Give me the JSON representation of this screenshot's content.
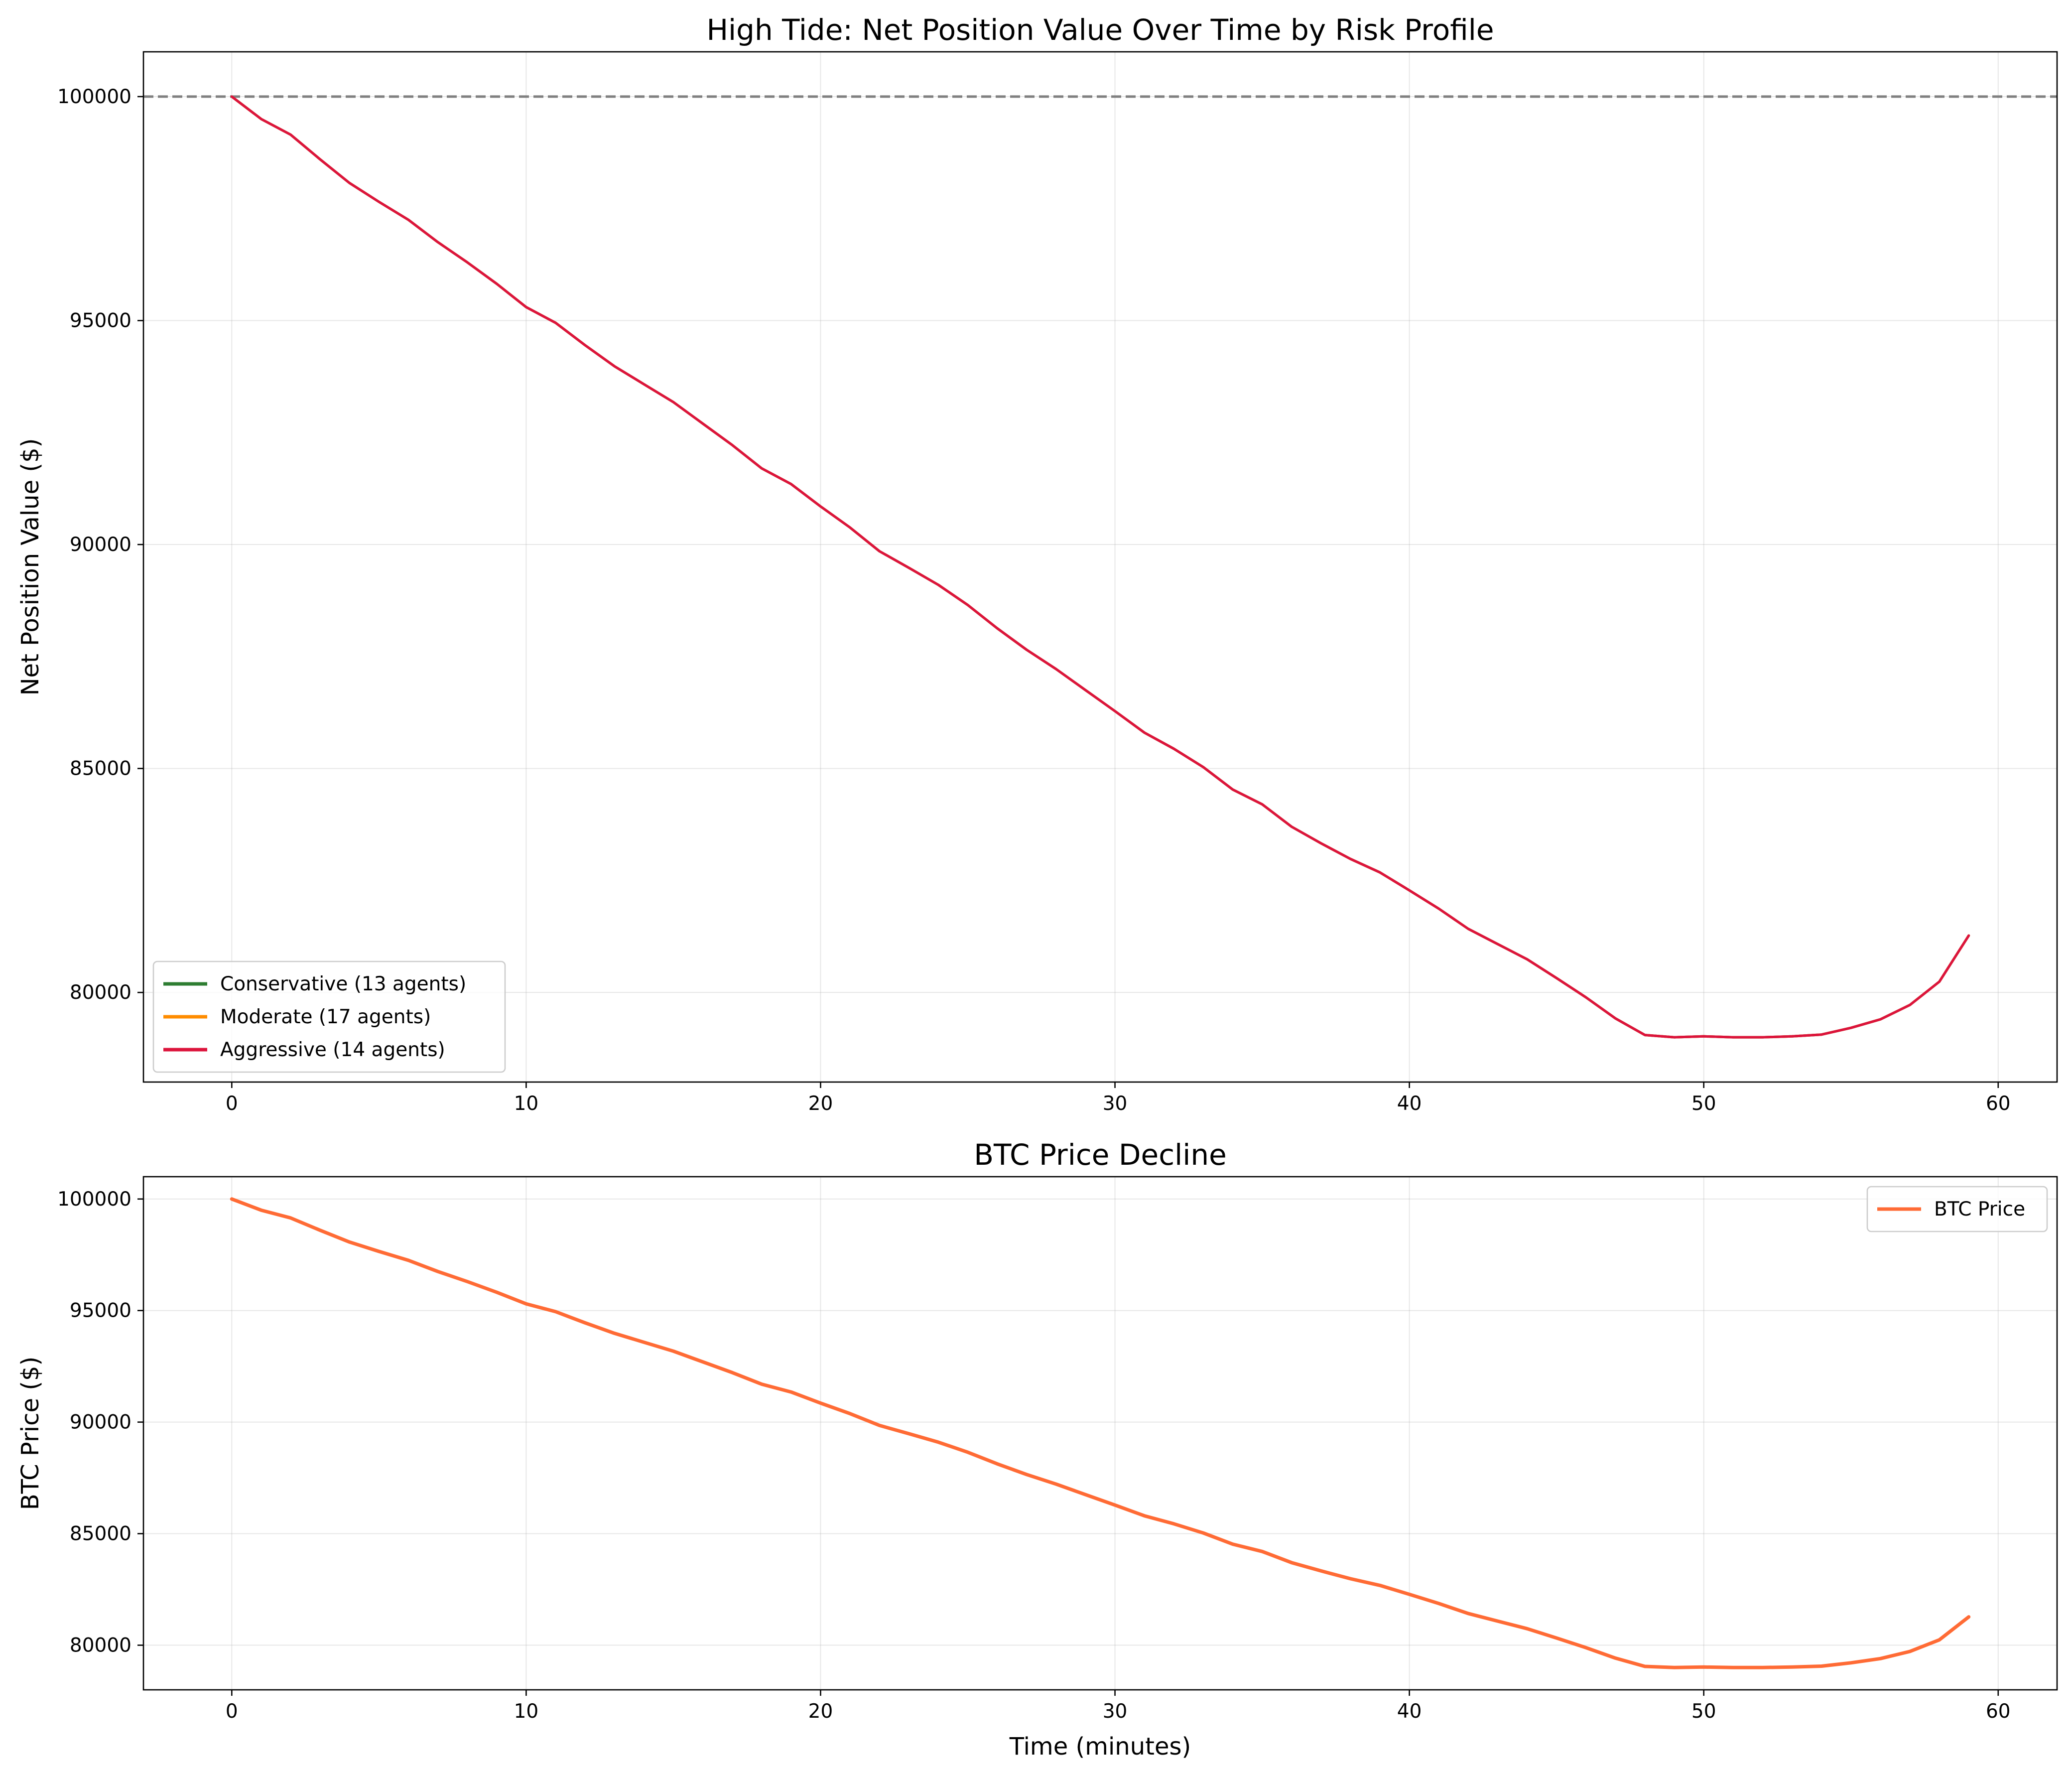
{
  "chart_data": [
    {
      "type": "line",
      "title": "High Tide: Net Position Value Over Time by Risk Profile",
      "xlabel": "",
      "ylabel": "Net Position Value ($)",
      "xlim": [
        -3,
        62
      ],
      "ylim": [
        78000,
        101000
      ],
      "xticks": [
        0,
        10,
        20,
        30,
        40,
        50,
        60
      ],
      "yticks": [
        80000,
        85000,
        90000,
        95000,
        100000
      ],
      "grid": true,
      "legend_position": "lower-left",
      "reference_line": {
        "y": 100000,
        "style": "dashed",
        "color": "#808080"
      },
      "x": [
        0,
        1,
        2,
        3,
        4,
        5,
        6,
        7,
        8,
        9,
        10,
        11,
        12,
        13,
        14,
        15,
        16,
        17,
        18,
        19,
        20,
        21,
        22,
        23,
        24,
        25,
        26,
        27,
        28,
        29,
        30,
        31,
        32,
        33,
        34,
        35,
        36,
        37,
        38,
        39,
        40,
        41,
        42,
        43,
        44,
        45,
        46,
        47,
        48,
        49,
        50,
        51,
        52,
        53,
        54,
        55,
        56,
        57,
        58,
        59
      ],
      "series": [
        {
          "name": "Conservative (13 agents)",
          "color": "#2e7d32",
          "values": [
            100000,
            99500,
            99150,
            98600,
            98070,
            97650,
            97250,
            96750,
            96300,
            95820,
            95300,
            94950,
            94450,
            93980,
            93580,
            93180,
            92700,
            92220,
            91700,
            91350,
            90850,
            90380,
            89850,
            89480,
            89100,
            88650,
            88130,
            87650,
            87220,
            86750,
            86280,
            85800,
            85440,
            85030,
            84530,
            84200,
            83700,
            83330,
            82980,
            82680,
            82280,
            81870,
            81420,
            81080,
            80740,
            80320,
            79890,
            79420,
            79050,
            79000,
            79020,
            79000,
            79000,
            79020,
            79060,
            79210,
            79400,
            79720,
            80240,
            81270
          ]
        },
        {
          "name": "Moderate (17 agents)",
          "color": "#ff8c00",
          "values": [
            100000,
            99500,
            99150,
            98600,
            98070,
            97650,
            97250,
            96750,
            96300,
            95820,
            95300,
            94950,
            94450,
            93980,
            93580,
            93180,
            92700,
            92220,
            91700,
            91350,
            90850,
            90380,
            89850,
            89480,
            89100,
            88650,
            88130,
            87650,
            87220,
            86750,
            86280,
            85800,
            85440,
            85030,
            84530,
            84200,
            83700,
            83330,
            82980,
            82680,
            82280,
            81870,
            81420,
            81080,
            80740,
            80320,
            79890,
            79420,
            79050,
            79000,
            79020,
            79000,
            79000,
            79020,
            79060,
            79210,
            79400,
            79720,
            80240,
            81270
          ]
        },
        {
          "name": "Aggressive (14 agents)",
          "color": "#dc143c",
          "values": [
            100000,
            99500,
            99150,
            98600,
            98070,
            97650,
            97250,
            96750,
            96300,
            95820,
            95300,
            94950,
            94450,
            93980,
            93580,
            93180,
            92700,
            92220,
            91700,
            91350,
            90850,
            90380,
            89850,
            89480,
            89100,
            88650,
            88130,
            87650,
            87220,
            86750,
            86280,
            85800,
            85440,
            85030,
            84530,
            84200,
            83700,
            83330,
            82980,
            82680,
            82280,
            81870,
            81420,
            81080,
            80740,
            80320,
            79890,
            79420,
            79050,
            79000,
            79020,
            79000,
            79000,
            79020,
            79060,
            79210,
            79400,
            79720,
            80240,
            81270
          ]
        }
      ]
    },
    {
      "type": "line",
      "title": "BTC Price Decline",
      "xlabel": "Time (minutes)",
      "ylabel": "BTC Price ($)",
      "xlim": [
        -3,
        62
      ],
      "ylim": [
        78000,
        101000
      ],
      "xticks": [
        0,
        10,
        20,
        30,
        40,
        50,
        60
      ],
      "yticks": [
        80000,
        85000,
        90000,
        95000,
        100000
      ],
      "grid": true,
      "legend_position": "upper-right",
      "x": [
        0,
        1,
        2,
        3,
        4,
        5,
        6,
        7,
        8,
        9,
        10,
        11,
        12,
        13,
        14,
        15,
        16,
        17,
        18,
        19,
        20,
        21,
        22,
        23,
        24,
        25,
        26,
        27,
        28,
        29,
        30,
        31,
        32,
        33,
        34,
        35,
        36,
        37,
        38,
        39,
        40,
        41,
        42,
        43,
        44,
        45,
        46,
        47,
        48,
        49,
        50,
        51,
        52,
        53,
        54,
        55,
        56,
        57,
        58,
        59
      ],
      "series": [
        {
          "name": "BTC Price",
          "color": "#ff6b35",
          "values": [
            100000,
            99500,
            99150,
            98600,
            98070,
            97650,
            97250,
            96750,
            96300,
            95820,
            95300,
            94950,
            94450,
            93980,
            93580,
            93180,
            92700,
            92220,
            91700,
            91350,
            90850,
            90380,
            89850,
            89480,
            89100,
            88650,
            88130,
            87650,
            87220,
            86750,
            86280,
            85800,
            85440,
            85030,
            84530,
            84200,
            83700,
            83330,
            82980,
            82680,
            82280,
            81870,
            81420,
            81080,
            80740,
            80320,
            79890,
            79420,
            79050,
            79000,
            79020,
            79000,
            79000,
            79020,
            79060,
            79210,
            79400,
            79720,
            80240,
            81270
          ]
        }
      ]
    }
  ]
}
